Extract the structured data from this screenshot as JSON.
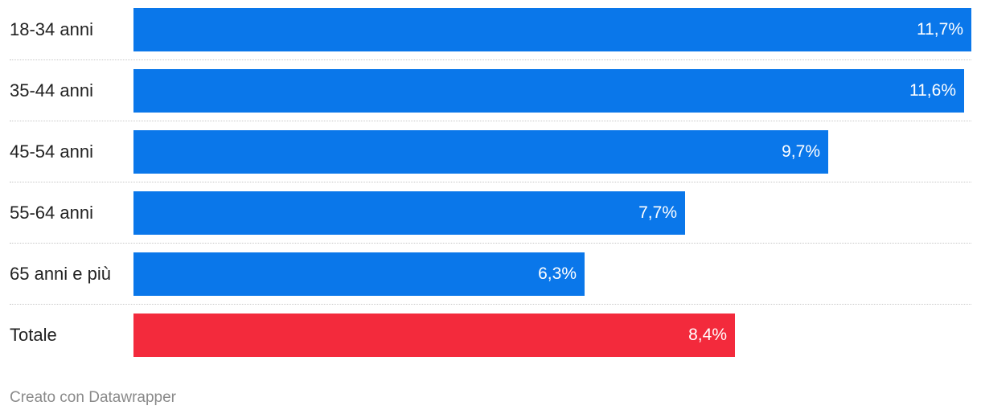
{
  "chart_data": {
    "type": "bar",
    "orientation": "horizontal",
    "categories": [
      "18-34 anni",
      "35-44 anni",
      "45-54 anni",
      "55-64 anni",
      "65 anni e più",
      "Totale"
    ],
    "values": [
      11.7,
      11.6,
      9.7,
      7.7,
      6.3,
      8.4
    ],
    "value_labels": [
      "11,7%",
      "11,6%",
      "9,7%",
      "7,7%",
      "6,3%",
      "8,4%"
    ],
    "colors": [
      "#0a77ea",
      "#0a77ea",
      "#0a77ea",
      "#0a77ea",
      "#0a77ea",
      "#f32a3c"
    ],
    "xlim": [
      0,
      11.7
    ],
    "grid": false,
    "title": "",
    "xlabel": "",
    "ylabel": ""
  },
  "footer": {
    "credit": "Creato con Datawrapper"
  }
}
